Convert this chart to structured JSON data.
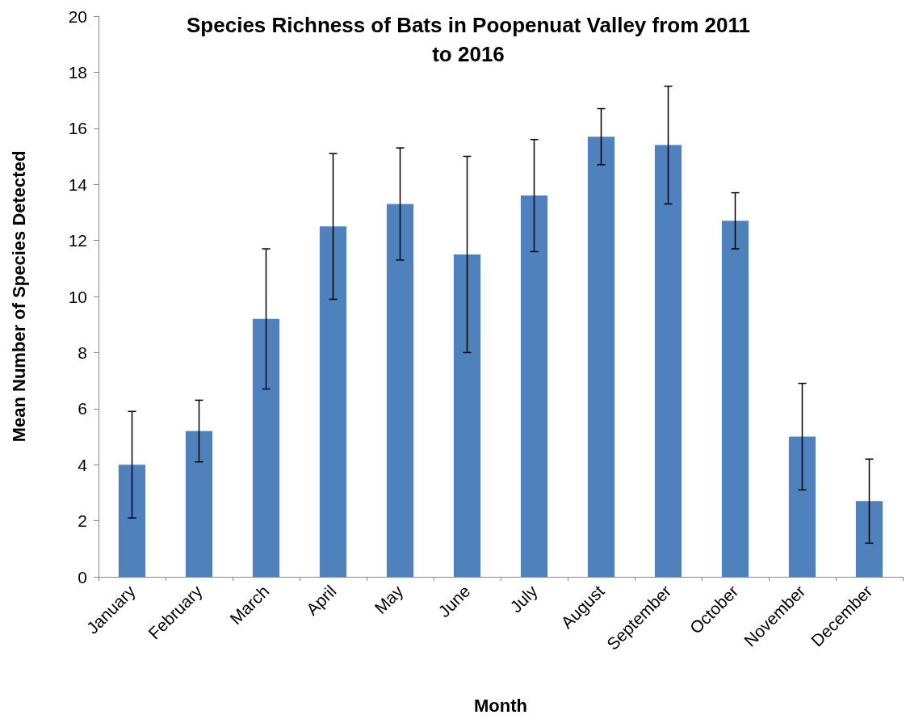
{
  "chart_data": {
    "type": "bar",
    "title": "Species Richness of Bats in Poopenuat Valley from 2011\nto 2016",
    "xlabel": "Month",
    "ylabel": "Mean Number of Species Detected",
    "categories": [
      "January",
      "February",
      "March",
      "April",
      "May",
      "June",
      "July",
      "August",
      "September",
      "October",
      "November",
      "December"
    ],
    "values": [
      4.0,
      5.2,
      9.2,
      12.5,
      13.3,
      11.5,
      13.6,
      15.7,
      15.4,
      12.7,
      5.0,
      2.7
    ],
    "errors": [
      1.9,
      1.1,
      2.5,
      2.6,
      2.0,
      3.5,
      2.0,
      1.0,
      2.1,
      1.0,
      1.9,
      1.5
    ],
    "color": "#4f81bd",
    "ylim": [
      0,
      20
    ],
    "yticks": [
      0,
      2,
      4,
      6,
      8,
      10,
      12,
      14,
      16,
      18,
      20
    ],
    "grid": false
  }
}
